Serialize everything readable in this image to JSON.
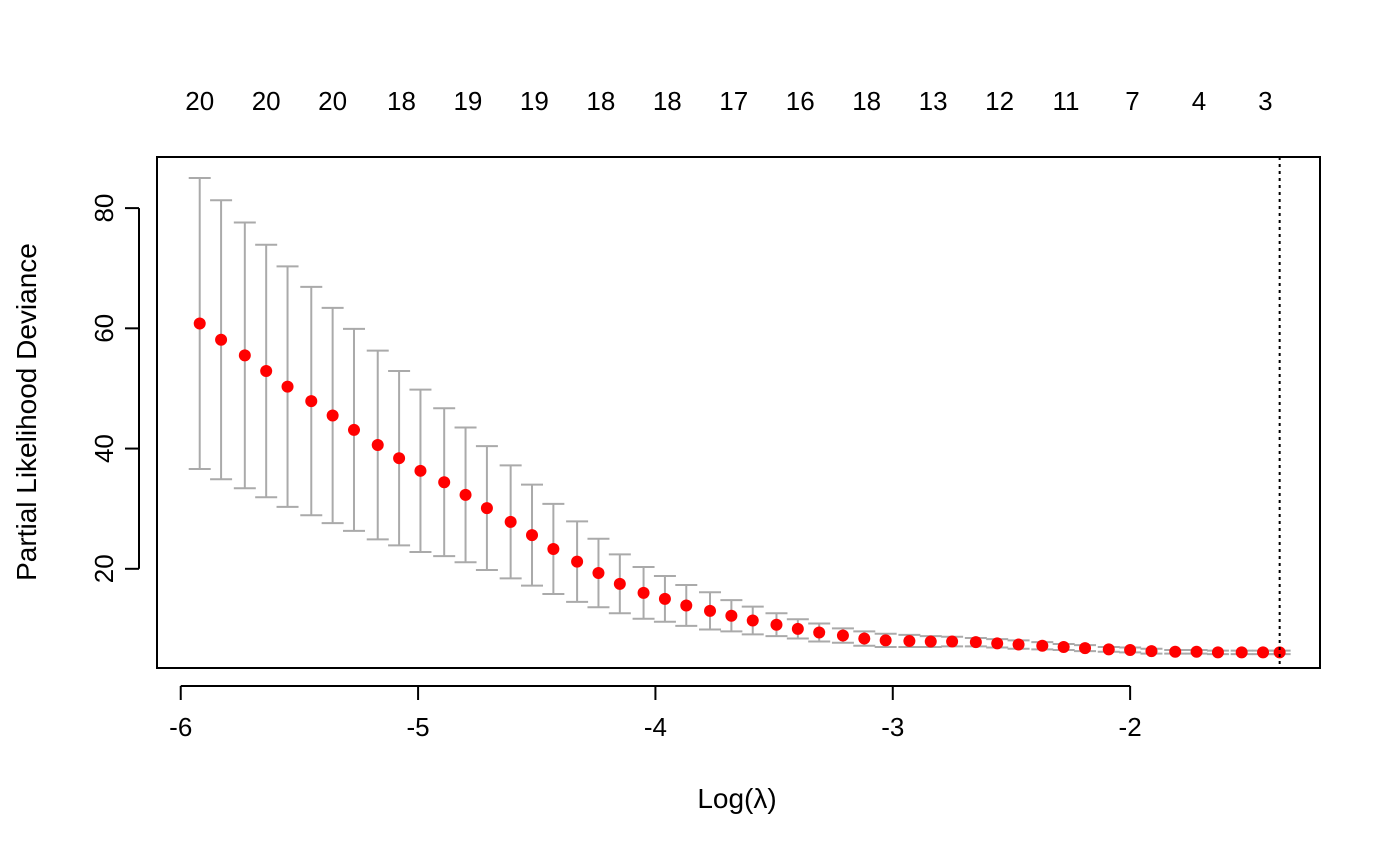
{
  "chart_data": {
    "type": "scatter",
    "title": "",
    "xlabel": "Log(λ)",
    "ylabel": "Partial Likelihood Deviance",
    "xlim": [
      -6.1,
      -1.2
    ],
    "ylim": [
      3.5,
      88.5
    ],
    "x_ticks": [
      -6,
      -5,
      -4,
      -3,
      -2
    ],
    "x_tick_labels": [
      "-6",
      "-5",
      "-4",
      "-3",
      "-2"
    ],
    "y_ticks": [
      20,
      40,
      60,
      80
    ],
    "y_tick_labels": [
      "20",
      "40",
      "60",
      "80"
    ],
    "top_axis": {
      "x": [
        -5.92,
        -5.64,
        -5.36,
        -5.07,
        -4.79,
        -4.51,
        -4.23,
        -3.95,
        -3.67,
        -3.39,
        -3.11,
        -2.83,
        -2.55,
        -2.27,
        -1.99,
        -1.71,
        -1.43
      ],
      "labels": [
        "20",
        "20",
        "20",
        "18",
        "19",
        "19",
        "18",
        "18",
        "17",
        "16",
        "18",
        "13",
        "12",
        "11",
        "7",
        "4",
        "3"
      ]
    },
    "vline_x": -1.37,
    "grid": false,
    "point_color": "#ff0000",
    "errorbar_color": "#aaaaaa",
    "series": [
      {
        "x": [
          -5.92,
          -5.83,
          -5.73,
          -5.64,
          -5.55,
          -5.45,
          -5.36,
          -5.27,
          -5.17,
          -5.08,
          -4.99,
          -4.89,
          -4.8,
          -4.71,
          -4.61,
          -4.52,
          -4.43,
          -4.33,
          -4.24,
          -4.15,
          -4.05,
          -3.96,
          -3.87,
          -3.77,
          -3.68,
          -3.59,
          -3.49,
          -3.4,
          -3.31,
          -3.21,
          -3.12,
          -3.03,
          -2.93,
          -2.84,
          -2.75,
          -2.65,
          -2.56,
          -2.47,
          -2.37,
          -2.28,
          -2.19,
          -2.09,
          -2.0,
          -1.91,
          -1.81,
          -1.72,
          -1.63,
          -1.53,
          -1.44,
          -1.37
        ],
        "y": [
          60.8,
          58.1,
          55.5,
          52.9,
          50.3,
          47.9,
          45.5,
          43.1,
          40.6,
          38.4,
          36.3,
          34.4,
          32.3,
          30.1,
          27.8,
          25.6,
          23.3,
          21.2,
          19.3,
          17.5,
          16.0,
          15.0,
          13.9,
          13.0,
          12.2,
          11.4,
          10.7,
          10.0,
          9.4,
          8.9,
          8.4,
          8.1,
          8.0,
          7.9,
          7.9,
          7.8,
          7.6,
          7.4,
          7.2,
          7.0,
          6.8,
          6.6,
          6.5,
          6.3,
          6.2,
          6.2,
          6.1,
          6.1,
          6.1,
          6.1
        ],
        "upper": [
          85.0,
          81.3,
          77.6,
          73.9,
          70.3,
          66.9,
          63.4,
          59.9,
          56.3,
          52.9,
          49.8,
          46.7,
          43.5,
          40.4,
          37.2,
          34.0,
          30.8,
          27.9,
          25.0,
          22.4,
          20.3,
          18.8,
          17.3,
          16.1,
          14.8,
          13.7,
          12.6,
          11.6,
          10.9,
          10.1,
          9.6,
          9.2,
          9.0,
          8.8,
          8.7,
          8.5,
          8.3,
          8.1,
          7.8,
          7.5,
          7.3,
          7.0,
          6.9,
          6.7,
          6.5,
          6.5,
          6.4,
          6.4,
          6.4,
          6.4
        ],
        "lower": [
          36.6,
          34.9,
          33.4,
          31.9,
          30.3,
          28.9,
          27.6,
          26.3,
          24.9,
          23.9,
          22.8,
          22.1,
          21.1,
          19.8,
          18.4,
          17.2,
          15.8,
          14.5,
          13.6,
          12.6,
          11.7,
          11.2,
          10.5,
          9.9,
          9.6,
          9.1,
          8.8,
          8.4,
          7.9,
          7.7,
          7.2,
          7.0,
          7.0,
          7.0,
          7.1,
          7.1,
          6.9,
          6.7,
          6.6,
          6.5,
          6.3,
          6.2,
          6.1,
          5.9,
          5.9,
          5.9,
          5.8,
          5.8,
          5.8,
          5.8
        ]
      }
    ]
  }
}
